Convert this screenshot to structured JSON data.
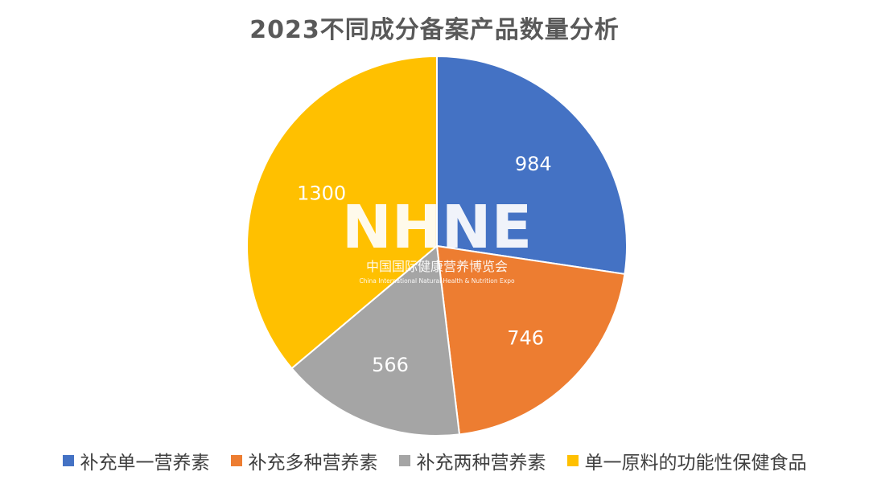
{
  "chart_data": {
    "type": "pie",
    "title": "2023不同成分备案产品数量分析",
    "categories": [
      "补充单一营养素",
      "补充多种营养素",
      "补充两种营养素",
      "单一原料的功能性保健食品"
    ],
    "values": [
      984,
      746,
      566,
      1300
    ],
    "colors": [
      "#4472C4",
      "#ED7D31",
      "#A5A5A5",
      "#FFC000"
    ],
    "data_labels": [
      "984",
      "746",
      "566",
      "1300"
    ],
    "legend_position": "bottom",
    "start_angle": "12 o'clock, clockwise"
  },
  "watermark": {
    "logo_text": "NHNE",
    "subtitle_cn": "中国国际健康营养博览会",
    "subtitle_en": "China International Natural Health & Nutrition Expo"
  }
}
